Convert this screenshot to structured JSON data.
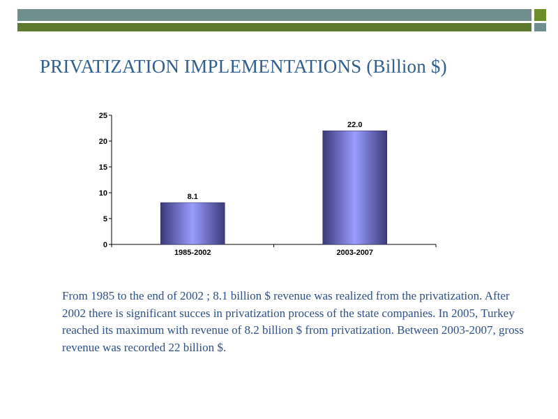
{
  "slide": {
    "title": "PRIVATIZATION IMPLEMENTATIONS (Billion $)",
    "body": "From 1985 to the  end of 2002 ; 8.1 billion $ revenue was realized from the privatization. After 2002 there is significant succes in privatization process of the state companies. In 2005, Turkey reached its maximum with revenue of 8.2 billion $ from privatization. Between 2003-2007, gross revenue was recorded 22 billion $."
  },
  "colors": {
    "title": "#2e5f8f",
    "body_text": "#2d4f88",
    "header_bar_grey": "#6f8f8f",
    "header_bar_green": "#5d7a2e",
    "bar_light": "#9a9cff",
    "bar_dark": "#3a3a7a"
  },
  "chart_data": {
    "type": "bar",
    "title": "",
    "xlabel": "",
    "ylabel": "",
    "categories": [
      "1985-2002",
      "2003-2007"
    ],
    "values": [
      8.1,
      22.0
    ],
    "data_labels": [
      "8.1",
      "22.0"
    ],
    "ylim": [
      0,
      25
    ],
    "yticks": [
      0,
      5,
      10,
      15,
      20,
      25
    ],
    "ytick_labels": [
      "0",
      "5",
      "10",
      "15",
      "20",
      "25"
    ],
    "grid": false,
    "legend": "none"
  }
}
